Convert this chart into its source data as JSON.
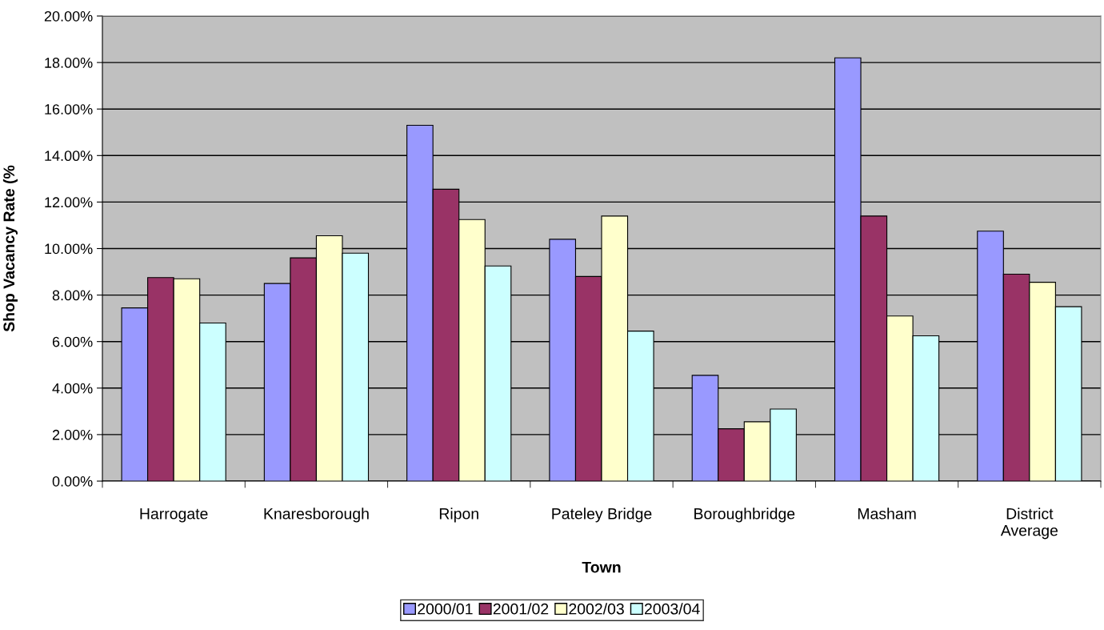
{
  "chart_data": {
    "type": "bar",
    "xlabel": "Town",
    "ylabel": "Shop Vacancy Rate (%",
    "categories": [
      "Harrogate",
      "Knaresborough",
      "Ripon",
      "Pateley Bridge",
      "Boroughbridge",
      "Masham",
      "District\nAverage"
    ],
    "series": [
      {
        "name": "2000/01",
        "color": "#9999ff",
        "values": [
          7.45,
          8.5,
          15.3,
          10.4,
          4.55,
          18.2,
          10.75
        ]
      },
      {
        "name": "2001/02",
        "color": "#993366",
        "values": [
          8.75,
          9.6,
          12.55,
          8.8,
          2.25,
          11.4,
          8.9
        ]
      },
      {
        "name": "2002/03",
        "color": "#ffffcc",
        "values": [
          8.7,
          10.55,
          11.25,
          11.4,
          2.55,
          7.1,
          8.55
        ]
      },
      {
        "name": "2003/04",
        "color": "#ccffff",
        "values": [
          6.8,
          9.8,
          9.25,
          6.45,
          3.1,
          6.25,
          7.5
        ]
      }
    ],
    "ylim": [
      0,
      20
    ],
    "yticks": [
      {
        "value": 0,
        "label": "0.00%"
      },
      {
        "value": 2,
        "label": "2.00%"
      },
      {
        "value": 4,
        "label": "4.00%"
      },
      {
        "value": 6,
        "label": "6.00%"
      },
      {
        "value": 8,
        "label": "8.00%"
      },
      {
        "value": 10,
        "label": "10.00%"
      },
      {
        "value": 12,
        "label": "12.00%"
      },
      {
        "value": 14,
        "label": "14.00%"
      },
      {
        "value": 16,
        "label": "16.00%"
      },
      {
        "value": 18,
        "label": "18.00%"
      },
      {
        "value": 20,
        "label": "20.00%"
      }
    ],
    "grid": "y",
    "legend": "bottom"
  }
}
